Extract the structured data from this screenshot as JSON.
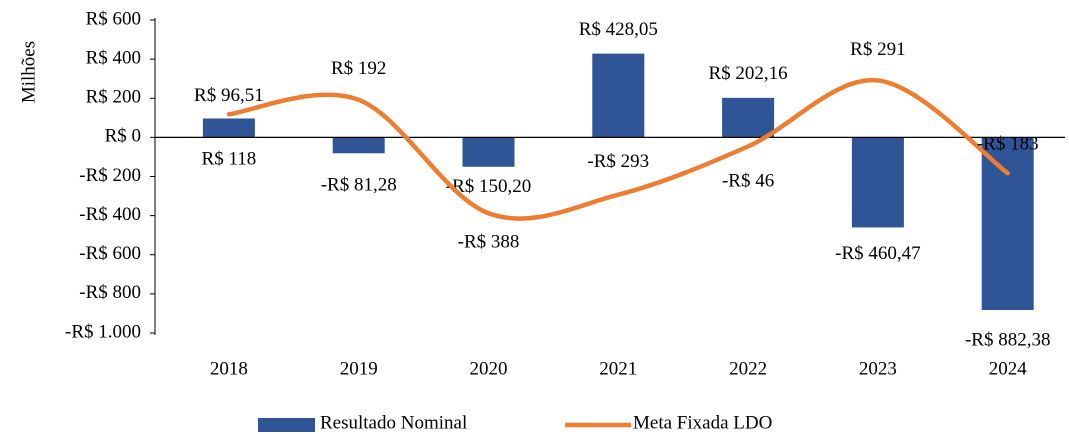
{
  "chart_data": {
    "type": "bar",
    "y_label": "Milhões",
    "categories": [
      "2018",
      "2019",
      "2020",
      "2021",
      "2022",
      "2023",
      "2024"
    ],
    "series": [
      {
        "name": "Resultado Nominal",
        "type": "bar",
        "color": "#2f5597",
        "label_color": "#34507f",
        "values": [
          96.51,
          -81.28,
          -150.2,
          428.05,
          202.16,
          -460.47,
          -882.38
        ],
        "value_labels": [
          "R$ 96,51",
          "-R$ 81,28",
          "-R$ 150,20",
          "R$ 428,05",
          "R$ 202,16",
          "-R$ 460,47",
          "-R$ 882,38"
        ]
      },
      {
        "name": "Meta Fixada LDO",
        "type": "line",
        "color": "#ed7d31",
        "label_color": "#ed7d31",
        "values": [
          118,
          192,
          -388,
          -293,
          -46,
          291,
          -183
        ],
        "value_labels": [
          "R$ 118",
          "R$ 192",
          "-R$ 388",
          "-R$ 293",
          "-R$ 46",
          "R$ 291",
          "-R$ 183"
        ]
      }
    ],
    "ylim": [
      -1000,
      600
    ],
    "yticks": [
      {
        "value": 600,
        "label": "R$ 600"
      },
      {
        "value": 400,
        "label": "R$ 400"
      },
      {
        "value": 200,
        "label": "R$ 200"
      },
      {
        "value": 0,
        "label": "R$ 0"
      },
      {
        "value": -200,
        "label": "-R$ 200"
      },
      {
        "value": -400,
        "label": "-R$ 400"
      },
      {
        "value": -600,
        "label": "-R$ 600"
      },
      {
        "value": -800,
        "label": "-R$ 800"
      },
      {
        "value": -1000,
        "label": "-R$ 1.000"
      }
    ],
    "legend": "bottom"
  }
}
